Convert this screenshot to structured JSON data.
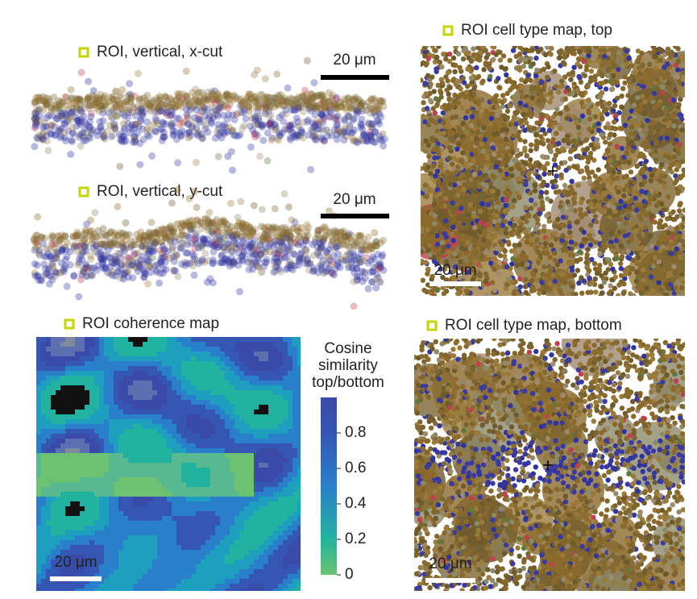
{
  "panels": [
    {
      "title": "ROI, vertical, x-cut",
      "scale_bar": "20 μm"
    },
    {
      "title": "ROI, vertical, y-cut",
      "scale_bar": "20 μm"
    },
    {
      "title": "ROI cell type map, top",
      "scale_bar": "20 μm"
    },
    {
      "title": "ROI coherence map",
      "scale_bar": "20 μm"
    },
    {
      "title": "ROI cell type map, bottom",
      "scale_bar": "20 μm"
    }
  ],
  "colorbar": {
    "title": [
      "Cosine",
      "similarity",
      "top/bottom"
    ],
    "lim": [
      0,
      1
    ],
    "ticks": [
      0,
      0.2,
      0.4,
      0.6,
      0.8
    ]
  }
}
